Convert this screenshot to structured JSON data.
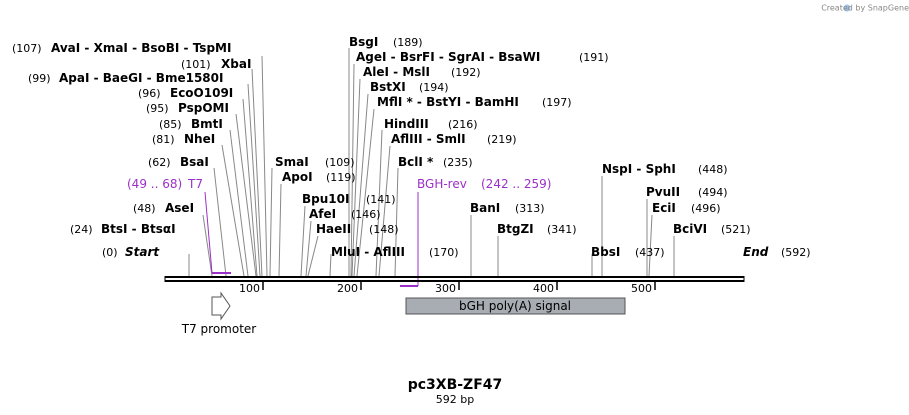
{
  "credit": "Created by SnapGene",
  "map": {
    "title": "pc3XB-ZF47",
    "length_label": "592 bp",
    "total_bp": 592
  },
  "scale_ticks": [
    {
      "label": "100",
      "bp": 100
    },
    {
      "label": "200",
      "bp": 200
    },
    {
      "label": "300",
      "bp": 300
    },
    {
      "label": "400",
      "bp": 400
    },
    {
      "label": "500",
      "bp": 500
    }
  ],
  "sites": [
    {
      "id": "start",
      "pos": "(0)",
      "name": "Start",
      "italic": true
    },
    {
      "id": "btsi",
      "pos": "(24)",
      "name": "BtsI  -  BtsαI"
    },
    {
      "id": "asei",
      "pos": "(48)",
      "name": "AseI"
    },
    {
      "id": "bsai",
      "pos": "(62)",
      "name": "BsaI"
    },
    {
      "id": "nhei",
      "pos": "(81)",
      "name": "NheI"
    },
    {
      "id": "bmti",
      "pos": "(85)",
      "name": "BmtI"
    },
    {
      "id": "pspomi",
      "pos": "(95)",
      "name": "PspOMI"
    },
    {
      "id": "ecoo109i",
      "pos": "(96)",
      "name": "EcoO109I"
    },
    {
      "id": "apai",
      "pos": "(99)",
      "name": "ApaI  -  BaeGI  -  Bme1580I"
    },
    {
      "id": "xbai",
      "pos": "(101)",
      "name": "XbaI"
    },
    {
      "id": "avai",
      "pos": "(107)",
      "name": "AvaI  -  XmaI  -  BsoBI  -  TspMI"
    },
    {
      "id": "smai",
      "pos": "(109)",
      "name": "SmaI"
    },
    {
      "id": "apoi",
      "pos": "(119)",
      "name": "ApoI"
    },
    {
      "id": "bpu10i",
      "pos": "(141)",
      "name": "Bpu10I"
    },
    {
      "id": "afei",
      "pos": "(146)",
      "name": "AfeI"
    },
    {
      "id": "haeii",
      "pos": "(148)",
      "name": "HaeII"
    },
    {
      "id": "mlui",
      "pos": "(170)",
      "name": "MluI  -  AflIII"
    },
    {
      "id": "bsgi",
      "pos": "(189)",
      "name": "BsgI"
    },
    {
      "id": "agei",
      "pos": "(191)",
      "name": "AgeI  -  BsrFI  -  SgrAI  -  BsaWI"
    },
    {
      "id": "alei",
      "pos": "(192)",
      "name": "AleI  -  MslI"
    },
    {
      "id": "bstxi",
      "pos": "(194)",
      "name": "BstXI"
    },
    {
      "id": "mfli",
      "pos": "(197)",
      "name": "MflI *  -  BstYI  -  BamHI"
    },
    {
      "id": "hindiii",
      "pos": "(216)",
      "name": "HindIII"
    },
    {
      "id": "afliii_smli",
      "pos": "(219)",
      "name": "AflIII  -  SmlI"
    },
    {
      "id": "bcli",
      "pos": "(235)",
      "name": "BclI *"
    },
    {
      "id": "bani",
      "pos": "(313)",
      "name": "BanI"
    },
    {
      "id": "btgzi",
      "pos": "(341)",
      "name": "BtgZI"
    },
    {
      "id": "bbsi",
      "pos": "(437)",
      "name": "BbsI"
    },
    {
      "id": "nspi",
      "pos": "(448)",
      "name": "NspI  -  SphI"
    },
    {
      "id": "pvuii",
      "pos": "(494)",
      "name": "PvuII"
    },
    {
      "id": "ecii",
      "pos": "(496)",
      "name": "EciI"
    },
    {
      "id": "bcivi",
      "pos": "(521)",
      "name": "BciVI"
    },
    {
      "id": "end",
      "pos": "(592)",
      "name": "End",
      "italic": true
    }
  ],
  "primers": [
    {
      "id": "t7",
      "range": "(49 .. 68)",
      "name": "T7"
    },
    {
      "id": "bghrev",
      "name": "BGH-rev",
      "range": "(242 .. 259)"
    }
  ],
  "features": [
    {
      "id": "t7promoter",
      "name": "T7 promoter"
    },
    {
      "id": "bgh",
      "name": "bGH poly(A) signal"
    }
  ],
  "colors": {
    "primer": "#9b30c8",
    "feature_fill": "#a7adb2",
    "backbone": "#000000"
  }
}
